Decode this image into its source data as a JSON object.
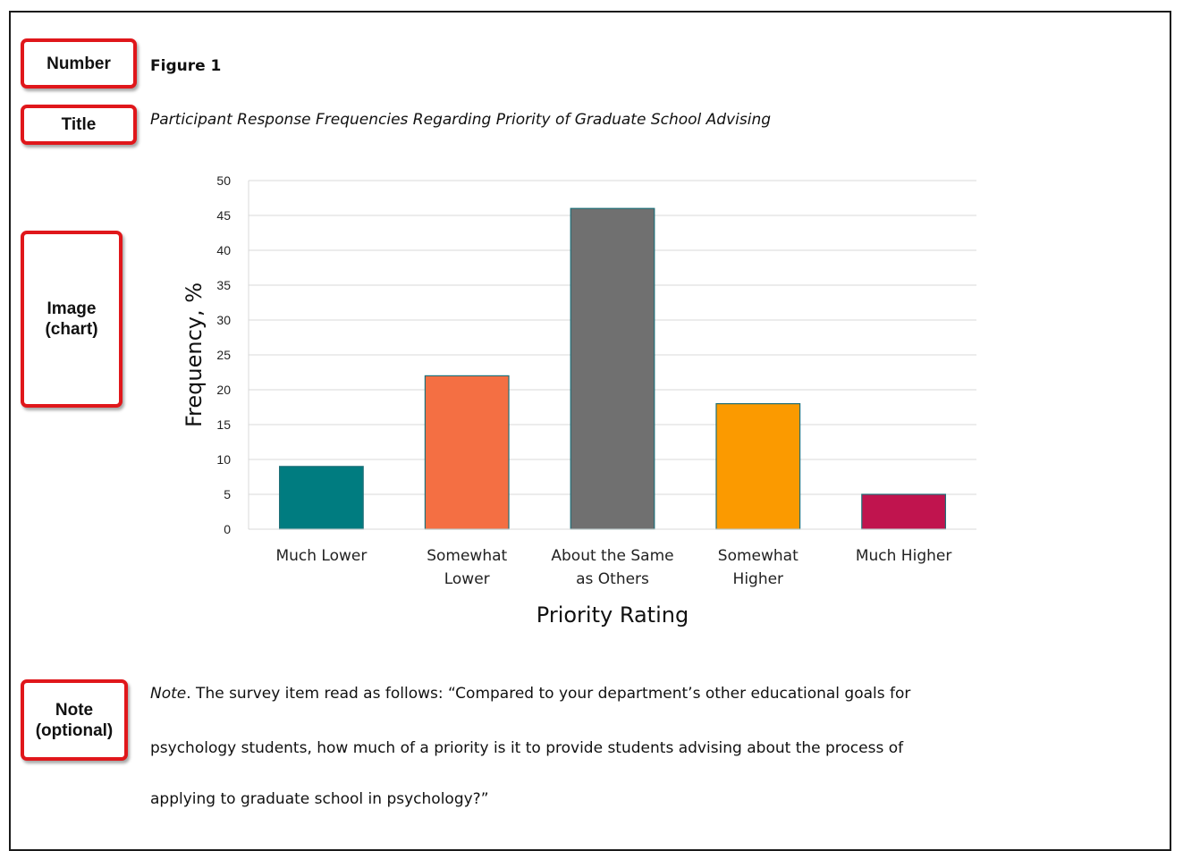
{
  "callouts": {
    "number": "Number",
    "title": "Title",
    "image_line1": "Image",
    "image_line2": "(chart)",
    "note_line1": "Note",
    "note_line2": "(optional)"
  },
  "figure": {
    "number": "Figure 1",
    "title": "Participant Response Frequencies Regarding Priority of Graduate School Advising"
  },
  "note": {
    "label": "Note",
    "line1_rest": ". The survey item read as follows: “Compared to your department’s other educational goals for",
    "line2": "psychology students, how much of a priority is it to provide students advising about the process of",
    "line3": "applying to graduate school in psychology?”"
  },
  "colors": {
    "callout_border": "#e0171b",
    "bar_outline": "#1f6f78"
  },
  "chart_data": {
    "type": "bar",
    "categories": [
      [
        "Much Lower"
      ],
      [
        "Somewhat",
        "Lower"
      ],
      [
        "About the Same",
        "as Others"
      ],
      [
        "Somewhat",
        "Higher"
      ],
      [
        "Much Higher"
      ]
    ],
    "values": [
      9,
      22,
      46,
      18,
      5
    ],
    "bar_colors": [
      "#007c80",
      "#f46f43",
      "#707070",
      "#fb9a00",
      "#c0144e"
    ],
    "xlabel": "Priority Rating",
    "ylabel": "Frequency, %",
    "ylim": [
      0,
      50
    ],
    "yticks": [
      0,
      5,
      10,
      15,
      20,
      25,
      30,
      35,
      40,
      45,
      50
    ],
    "grid": true
  }
}
